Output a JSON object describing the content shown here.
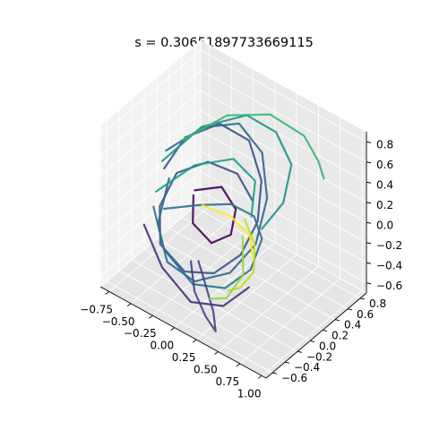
{
  "chart_data": {
    "type": "line",
    "projection": "3d",
    "title": "s = 0.30651897733669115",
    "xlabel": "",
    "ylabel": "",
    "zlabel": "",
    "grid": true,
    "colormap": "viridis",
    "x_ticks": [
      "−0.75",
      "−0.50",
      "−0.25",
      "0.00",
      "0.25",
      "0.50",
      "0.75",
      "1.00"
    ],
    "y_ticks": [
      "−0.6",
      "−0.4",
      "−0.2",
      "0.0",
      "0.2",
      "0.4",
      "0.6",
      "0.8"
    ],
    "z_ticks": [
      "−0.6",
      "−0.4",
      "−0.2",
      "0.0",
      "0.2",
      "0.4",
      "0.6",
      "0.8"
    ],
    "xlim": [
      -0.85,
      1.05
    ],
    "ylim": [
      -0.7,
      0.9
    ],
    "zlim": [
      -0.7,
      0.9
    ],
    "series": [
      {
        "color": "#3b528b",
        "points": [
          [
            -0.55,
            -0.1,
            0.3
          ],
          [
            -0.45,
            0.1,
            0.55
          ],
          [
            -0.2,
            0.3,
            0.7
          ],
          [
            0.1,
            0.35,
            0.65
          ],
          [
            0.35,
            0.2,
            0.45
          ],
          [
            0.45,
            0.0,
            0.2
          ],
          [
            0.4,
            -0.2,
            -0.05
          ],
          [
            0.2,
            -0.35,
            -0.25
          ],
          [
            -0.1,
            -0.4,
            -0.35
          ],
          [
            -0.45,
            -0.3,
            -0.3
          ],
          [
            -0.6,
            -0.1,
            -0.1
          ],
          [
            -0.55,
            0.1,
            0.15
          ],
          [
            -0.3,
            0.25,
            0.3
          ],
          [
            0.0,
            0.3,
            0.3
          ],
          [
            0.25,
            0.2,
            0.2
          ]
        ]
      },
      {
        "color": "#31688e",
        "points": [
          [
            -0.6,
            0.0,
            0.4
          ],
          [
            -0.35,
            0.25,
            0.62
          ],
          [
            -0.05,
            0.4,
            0.72
          ],
          [
            0.25,
            0.35,
            0.6
          ],
          [
            0.45,
            0.15,
            0.35
          ],
          [
            0.5,
            -0.1,
            0.05
          ],
          [
            0.35,
            -0.3,
            -0.2
          ],
          [
            0.05,
            -0.45,
            -0.35
          ],
          [
            -0.3,
            -0.4,
            -0.35
          ],
          [
            -0.55,
            -0.2,
            -0.2
          ],
          [
            -0.6,
            0.05,
            0.1
          ]
        ]
      },
      {
        "color": "#21918c",
        "points": [
          [
            -0.5,
            -0.2,
            0.45
          ],
          [
            -0.3,
            0.15,
            0.7
          ],
          [
            0.0,
            0.45,
            0.8
          ],
          [
            0.3,
            0.5,
            0.75
          ],
          [
            0.55,
            0.4,
            0.6
          ],
          [
            0.6,
            0.2,
            0.35
          ],
          [
            0.5,
            0.0,
            0.15
          ]
        ]
      },
      {
        "color": "#35b779",
        "points": [
          [
            -0.45,
            0.05,
            0.55
          ],
          [
            -0.15,
            0.35,
            0.78
          ],
          [
            0.2,
            0.55,
            0.85
          ],
          [
            0.55,
            0.6,
            0.78
          ],
          [
            0.75,
            0.55,
            0.65
          ],
          [
            0.85,
            0.5,
            0.55
          ]
        ]
      },
      {
        "color": "#440154",
        "points": [
          [
            -0.2,
            -0.1,
            0.25
          ],
          [
            0.0,
            0.05,
            0.3
          ],
          [
            0.2,
            0.0,
            0.2
          ],
          [
            0.25,
            -0.15,
            0.05
          ],
          [
            0.1,
            -0.25,
            -0.05
          ],
          [
            -0.15,
            -0.2,
            0.0
          ],
          [
            -0.25,
            -0.05,
            0.15
          ]
        ]
      },
      {
        "color": "#2c728e",
        "points": [
          [
            -0.6,
            -0.2,
            -0.05
          ],
          [
            -0.3,
            -0.45,
            -0.2
          ],
          [
            0.1,
            -0.55,
            -0.3
          ],
          [
            0.4,
            -0.45,
            -0.25
          ],
          [
            0.55,
            -0.25,
            -0.1
          ],
          [
            0.5,
            0.0,
            0.05
          ],
          [
            0.3,
            0.15,
            0.1
          ],
          [
            0.0,
            0.2,
            0.05
          ],
          [
            -0.3,
            0.1,
            -0.05
          ],
          [
            -0.55,
            -0.1,
            -0.1
          ]
        ]
      },
      {
        "color": "#414487",
        "points": [
          [
            -0.1,
            -0.3,
            -0.3
          ],
          [
            0.05,
            -0.45,
            -0.45
          ],
          [
            0.25,
            -0.55,
            -0.55
          ],
          [
            0.4,
            -0.6,
            -0.6
          ],
          [
            0.3,
            -0.5,
            -0.5
          ],
          [
            0.1,
            -0.35,
            -0.4
          ],
          [
            -0.05,
            -0.25,
            -0.3
          ]
        ]
      },
      {
        "color": "#bddf26",
        "points": [
          [
            0.3,
            0.0,
            0.15
          ],
          [
            0.45,
            -0.05,
            0.0
          ],
          [
            0.55,
            -0.2,
            -0.15
          ],
          [
            0.5,
            -0.35,
            -0.25
          ],
          [
            0.4,
            -0.4,
            -0.3
          ]
        ]
      },
      {
        "color": "#fde725",
        "points": [
          [
            -0.15,
            -0.05,
            0.1
          ],
          [
            0.15,
            0.0,
            0.1
          ],
          [
            0.4,
            -0.05,
            0.05
          ],
          [
            0.5,
            -0.15,
            -0.05
          ]
        ]
      },
      {
        "color": "#90d743",
        "points": [
          [
            0.35,
            -0.1,
            0.05
          ],
          [
            0.5,
            -0.3,
            -0.15
          ],
          [
            0.45,
            -0.5,
            -0.3
          ],
          [
            0.3,
            -0.55,
            -0.35
          ]
        ]
      },
      {
        "color": "#1f9e89",
        "points": [
          [
            -0.5,
            -0.3,
            0.2
          ],
          [
            -0.2,
            -0.1,
            0.5
          ],
          [
            0.1,
            0.1,
            0.6
          ],
          [
            0.35,
            0.1,
            0.5
          ],
          [
            0.45,
            -0.1,
            0.3
          ]
        ]
      },
      {
        "color": "#46327e",
        "points": [
          [
            -0.6,
            -0.35,
            -0.15
          ],
          [
            -0.25,
            -0.55,
            -0.3
          ],
          [
            0.15,
            -0.65,
            -0.4
          ],
          [
            0.45,
            -0.55,
            -0.35
          ],
          [
            0.6,
            -0.35,
            -0.2
          ]
        ]
      }
    ]
  }
}
